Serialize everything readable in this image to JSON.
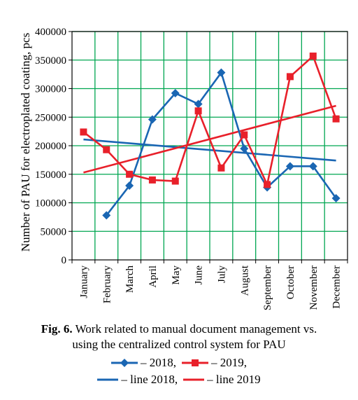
{
  "chart_data": {
    "type": "line",
    "title": "",
    "xlabel": "",
    "ylabel": "Number of PAU for electroplated coating, pcs",
    "ylim": [
      0,
      400000
    ],
    "yticks": [
      0,
      50000,
      100000,
      150000,
      200000,
      250000,
      300000,
      350000,
      400000
    ],
    "ytick_labels": [
      "0",
      "50000",
      "100000",
      "150000",
      "200000",
      "250000",
      "300000",
      "350000",
      "400000"
    ],
    "categories": [
      "January",
      "February",
      "March",
      "April",
      "May",
      "June",
      "July",
      "August",
      "September",
      "October",
      "November",
      "December"
    ],
    "grid": true,
    "grid_color": "#00a651",
    "legend_placement": "bottom",
    "series": [
      {
        "name": "– 2018,",
        "color": "#1a66b3",
        "marker": "diamond",
        "values": [
          null,
          78000,
          130000,
          246000,
          292000,
          273000,
          328000,
          195000,
          127000,
          164000,
          164000,
          108000
        ]
      },
      {
        "name": "– 2019,",
        "color": "#e8202a",
        "marker": "square",
        "values": [
          224000,
          193000,
          150000,
          140000,
          138000,
          261000,
          161000,
          219000,
          132000,
          321000,
          357000,
          247000
        ]
      }
    ],
    "trendlines": [
      {
        "name": "– line 2018,",
        "color": "#1a66b3",
        "from": [
          1,
          211000
        ],
        "to": [
          12,
          174000
        ]
      },
      {
        "name": "– line 2019",
        "color": "#e8202a",
        "from": [
          1,
          153000
        ],
        "to": [
          12,
          270000
        ]
      }
    ]
  },
  "caption": {
    "fig_label": "Fig. 6.",
    "line1": "Work related to manual document management vs.",
    "line2": "using the centralized control system for PAU"
  }
}
